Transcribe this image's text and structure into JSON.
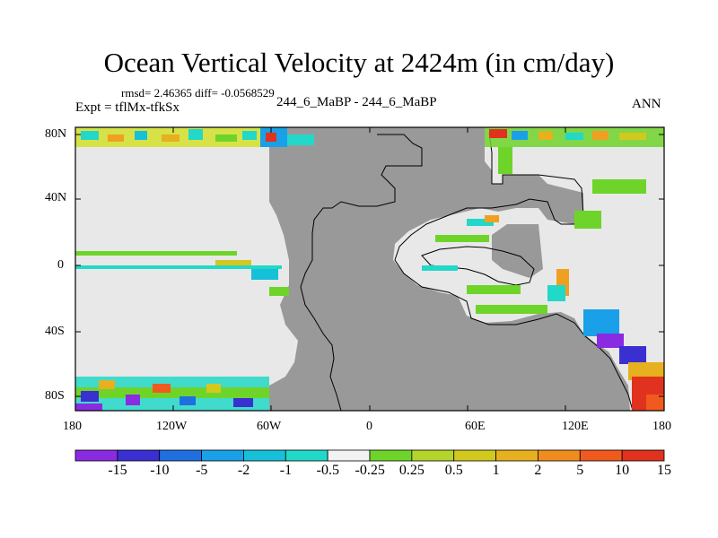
{
  "title": "Ocean Vertical Velocity at 2424m (in cm/day)",
  "stats_line": "rmsd= 2.46365 diff= -0.0568529",
  "expt_line": "Expt = tflMx-tfkSx",
  "case_compare": "244_6_MaBP - 244_6_MaBP",
  "season": "ANN",
  "map": {
    "land_color": "#999999",
    "ocean_zero_color": "#e8e8e8",
    "y_tick_labels": [
      "80N",
      "40N",
      "0",
      "40S",
      "80S"
    ],
    "x_tick_labels": [
      "180",
      "120W",
      "60W",
      "0",
      "60E",
      "120E",
      "180"
    ]
  },
  "colorbar": {
    "colors": [
      "#8a2be2",
      "#3a2fd0",
      "#1f6fe0",
      "#1aa0e8",
      "#16c0d8",
      "#22d8c8",
      "#f2f2f2",
      "#6ed42a",
      "#b4d42a",
      "#d2c81e",
      "#e6b01e",
      "#f08c1e",
      "#f05a1e",
      "#e0321e"
    ],
    "labels": [
      "-15",
      "-10",
      "-5",
      "-2",
      "-1",
      "-0.5",
      "-0.25",
      "0.25",
      "0.5",
      "1",
      "2",
      "5",
      "10",
      "15"
    ]
  }
}
